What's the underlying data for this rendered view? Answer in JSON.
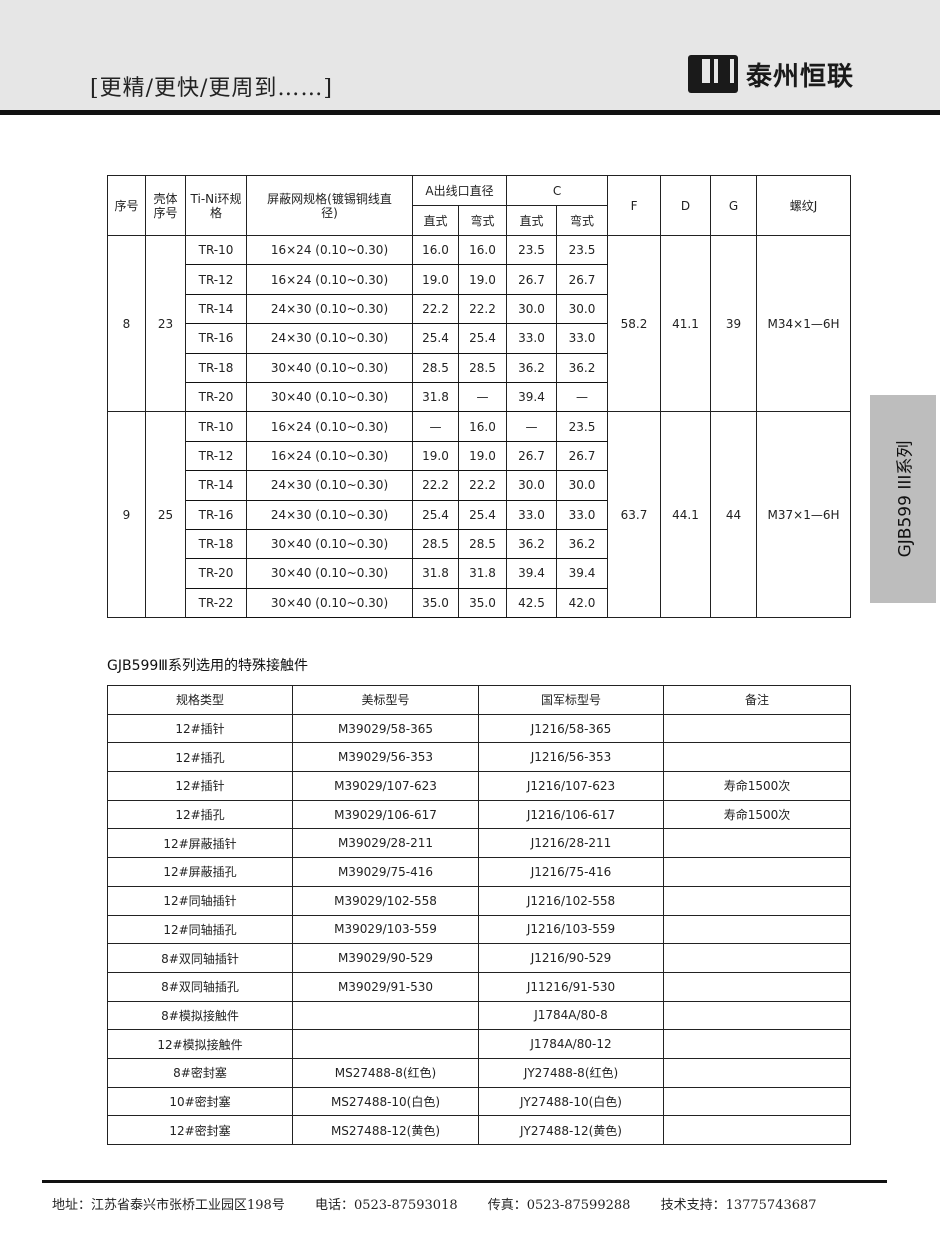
{
  "header": {
    "slogan": "[更精/更快/更周到……]",
    "logo_text": "泰州恒联",
    "logo_mark": "LH"
  },
  "side_tab": "GJB599 III系列",
  "table1": {
    "headers": {
      "no": "序号",
      "shell": "壳体序号",
      "ring": "Ti-Ni环规 格",
      "shield": "屏蔽网规格(镀锡铜线直径)",
      "a": "A出线口直径",
      "c": "C",
      "straight": "直式",
      "bent": "弯式",
      "f": "F",
      "d": "D",
      "g": "G",
      "thread": "螺纹J"
    },
    "groups": [
      {
        "no": "8",
        "shell": "23",
        "f": "58.2",
        "d": "41.1",
        "g": "39",
        "thread": "M34×1—6H",
        "rows": [
          [
            "TR-10",
            "16×24 (0.10~0.30)",
            "16.0",
            "16.0",
            "23.5",
            "23.5"
          ],
          [
            "TR-12",
            "16×24 (0.10~0.30)",
            "19.0",
            "19.0",
            "26.7",
            "26.7"
          ],
          [
            "TR-14",
            "24×30 (0.10~0.30)",
            "22.2",
            "22.2",
            "30.0",
            "30.0"
          ],
          [
            "TR-16",
            "24×30 (0.10~0.30)",
            "25.4",
            "25.4",
            "33.0",
            "33.0"
          ],
          [
            "TR-18",
            "30×40 (0.10~0.30)",
            "28.5",
            "28.5",
            "36.2",
            "36.2"
          ],
          [
            "TR-20",
            "30×40 (0.10~0.30)",
            "31.8",
            "—",
            "39.4",
            "—"
          ]
        ]
      },
      {
        "no": "9",
        "shell": "25",
        "f": "63.7",
        "d": "44.1",
        "g": "44",
        "thread": "M37×1—6H",
        "rows": [
          [
            "TR-10",
            "16×24 (0.10~0.30)",
            "—",
            "16.0",
            "—",
            "23.5"
          ],
          [
            "TR-12",
            "16×24 (0.10~0.30)",
            "19.0",
            "19.0",
            "26.7",
            "26.7"
          ],
          [
            "TR-14",
            "24×30 (0.10~0.30)",
            "22.2",
            "22.2",
            "30.0",
            "30.0"
          ],
          [
            "TR-16",
            "24×30 (0.10~0.30)",
            "25.4",
            "25.4",
            "33.0",
            "33.0"
          ],
          [
            "TR-18",
            "30×40 (0.10~0.30)",
            "28.5",
            "28.5",
            "36.2",
            "36.2"
          ],
          [
            "TR-20",
            "30×40 (0.10~0.30)",
            "31.8",
            "31.8",
            "39.4",
            "39.4"
          ],
          [
            "TR-22",
            "30×40 (0.10~0.30)",
            "35.0",
            "35.0",
            "42.5",
            "42.0"
          ]
        ]
      }
    ]
  },
  "table2": {
    "title": "GJB599Ⅲ系列选用的特殊接触件",
    "headers": [
      "规格类型",
      "美标型号",
      "国军标型号",
      "备注"
    ],
    "rows": [
      [
        "12#插针",
        "M39029/58-365",
        "J1216/58-365",
        ""
      ],
      [
        "12#插孔",
        "M39029/56-353",
        "J1216/56-353",
        ""
      ],
      [
        "12#插针",
        "M39029/107-623",
        "J1216/107-623",
        "寿命1500次"
      ],
      [
        "12#插孔",
        "M39029/106-617",
        "J1216/106-617",
        "寿命1500次"
      ],
      [
        "12#屏蔽插针",
        "M39029/28-211",
        "J1216/28-211",
        ""
      ],
      [
        "12#屏蔽插孔",
        "M39029/75-416",
        "J1216/75-416",
        ""
      ],
      [
        "12#同轴插针",
        "M39029/102-558",
        "J1216/102-558",
        ""
      ],
      [
        "12#同轴插孔",
        "M39029/103-559",
        "J1216/103-559",
        ""
      ],
      [
        "8#双同轴插针",
        "M39029/90-529",
        "J1216/90-529",
        ""
      ],
      [
        "8#双同轴插孔",
        "M39029/91-530",
        "J11216/91-530",
        ""
      ],
      [
        "8#模拟接触件",
        "",
        "J1784A/80-8",
        ""
      ],
      [
        "12#模拟接触件",
        "",
        "J1784A/80-12",
        ""
      ],
      [
        "8#密封塞",
        "MS27488-8(红色)",
        "JY27488-8(红色)",
        ""
      ],
      [
        "10#密封塞",
        "MS27488-10(白色)",
        "JY27488-10(白色)",
        ""
      ],
      [
        "12#密封塞",
        "MS27488-12(黄色)",
        "JY27488-12(黄色)",
        ""
      ]
    ]
  },
  "footer": {
    "address": "地址：江苏省泰兴市张桥工业园区198号",
    "phone": "电话：0523-87593018",
    "fax": "传真：0523-87599288",
    "support": "技术支持：13775743687"
  }
}
